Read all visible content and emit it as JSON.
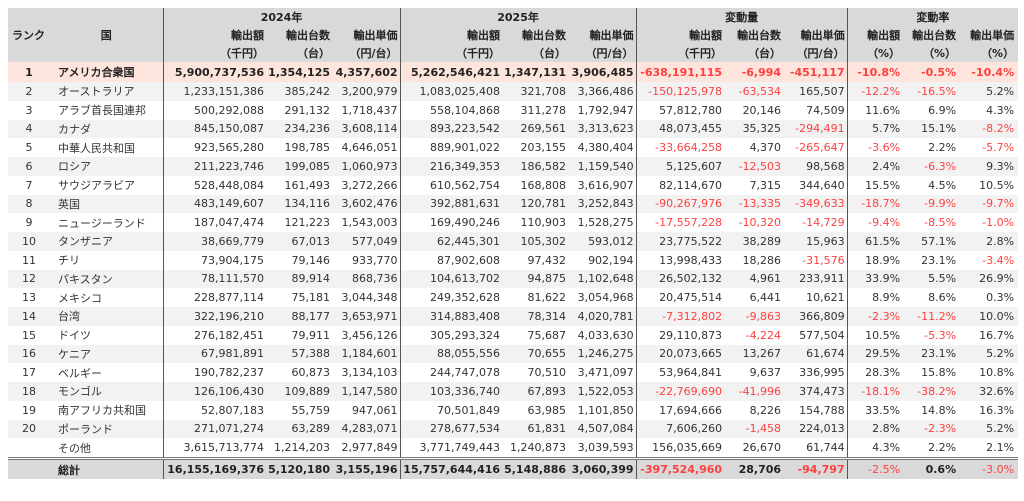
{
  "header": {
    "rank": "ランク",
    "country": "国",
    "groups": [
      "2024年",
      "2025年",
      "変動量",
      "変動率"
    ],
    "labels": [
      "輸出額",
      "輸出台数",
      "輸出単価",
      "輸出額",
      "輸出台数",
      "輸出単価",
      "輸出額",
      "輸出台数",
      "輸出単価",
      "輸出額",
      "輸出台数",
      "輸出単価"
    ],
    "units": [
      "（千円）",
      "（台）",
      "（円/台）",
      "（千円）",
      "（台）",
      "（円/台）",
      "（千円）",
      "（台）",
      "（円/台）",
      "（%）",
      "（%）",
      "（%）"
    ]
  },
  "colors": {
    "negative": "#ff4040",
    "highlight_row": "#fde4dc",
    "header_bg": "#d9d9d9"
  },
  "rows": [
    [
      "1",
      "アメリカ合衆国",
      "5,900,737,536",
      "1,354,125",
      "4,357,602",
      "5,262,546,421",
      "1,347,131",
      "3,906,485",
      "-638,191,115",
      "-6,994",
      "-451,117",
      "-10.8%",
      "-0.5%",
      "-10.4%"
    ],
    [
      "2",
      "オーストラリア",
      "1,233,151,386",
      "385,242",
      "3,200,979",
      "1,083,025,408",
      "321,708",
      "3,366,486",
      "-150,125,978",
      "-63,534",
      "165,507",
      "-12.2%",
      "-16.5%",
      "5.2%"
    ],
    [
      "3",
      "アラブ首長国連邦",
      "500,292,088",
      "291,132",
      "1,718,437",
      "558,104,868",
      "311,278",
      "1,792,947",
      "57,812,780",
      "20,146",
      "74,509",
      "11.6%",
      "6.9%",
      "4.3%"
    ],
    [
      "4",
      "カナダ",
      "845,150,087",
      "234,236",
      "3,608,114",
      "893,223,542",
      "269,561",
      "3,313,623",
      "48,073,455",
      "35,325",
      "-294,491",
      "5.7%",
      "15.1%",
      "-8.2%"
    ],
    [
      "5",
      "中華人民共和国",
      "923,565,280",
      "198,785",
      "4,646,051",
      "889,901,022",
      "203,155",
      "4,380,404",
      "-33,664,258",
      "4,370",
      "-265,647",
      "-3.6%",
      "2.2%",
      "-5.7%"
    ],
    [
      "6",
      "ロシア",
      "211,223,746",
      "199,085",
      "1,060,973",
      "216,349,353",
      "186,582",
      "1,159,540",
      "5,125,607",
      "-12,503",
      "98,568",
      "2.4%",
      "-6.3%",
      "9.3%"
    ],
    [
      "7",
      "サウジアラビア",
      "528,448,084",
      "161,493",
      "3,272,266",
      "610,562,754",
      "168,808",
      "3,616,907",
      "82,114,670",
      "7,315",
      "344,640",
      "15.5%",
      "4.5%",
      "10.5%"
    ],
    [
      "8",
      "英国",
      "483,149,607",
      "134,116",
      "3,602,476",
      "392,881,631",
      "120,781",
      "3,252,843",
      "-90,267,976",
      "-13,335",
      "-349,633",
      "-18.7%",
      "-9.9%",
      "-9.7%"
    ],
    [
      "9",
      "ニュージーランド",
      "187,047,474",
      "121,223",
      "1,543,003",
      "169,490,246",
      "110,903",
      "1,528,275",
      "-17,557,228",
      "-10,320",
      "-14,729",
      "-9.4%",
      "-8.5%",
      "-1.0%"
    ],
    [
      "10",
      "タンザニア",
      "38,669,779",
      "67,013",
      "577,049",
      "62,445,301",
      "105,302",
      "593,012",
      "23,775,522",
      "38,289",
      "15,963",
      "61.5%",
      "57.1%",
      "2.8%"
    ],
    [
      "11",
      "チリ",
      "73,904,175",
      "79,146",
      "933,770",
      "87,902,608",
      "97,432",
      "902,194",
      "13,998,433",
      "18,286",
      "-31,576",
      "18.9%",
      "23.1%",
      "-3.4%"
    ],
    [
      "12",
      "パキスタン",
      "78,111,570",
      "89,914",
      "868,736",
      "104,613,702",
      "94,875",
      "1,102,648",
      "26,502,132",
      "4,961",
      "233,911",
      "33.9%",
      "5.5%",
      "26.9%"
    ],
    [
      "13",
      "メキシコ",
      "228,877,114",
      "75,181",
      "3,044,348",
      "249,352,628",
      "81,622",
      "3,054,968",
      "20,475,514",
      "6,441",
      "10,621",
      "8.9%",
      "8.6%",
      "0.3%"
    ],
    [
      "14",
      "台湾",
      "322,196,210",
      "88,177",
      "3,653,971",
      "314,883,408",
      "78,314",
      "4,020,781",
      "-7,312,802",
      "-9,863",
      "366,809",
      "-2.3%",
      "-11.2%",
      "10.0%"
    ],
    [
      "15",
      "ドイツ",
      "276,182,451",
      "79,911",
      "3,456,126",
      "305,293,324",
      "75,687",
      "4,033,630",
      "29,110,873",
      "-4,224",
      "577,504",
      "10.5%",
      "-5.3%",
      "16.7%"
    ],
    [
      "16",
      "ケニア",
      "67,981,891",
      "57,388",
      "1,184,601",
      "88,055,556",
      "70,655",
      "1,246,275",
      "20,073,665",
      "13,267",
      "61,674",
      "29.5%",
      "23.1%",
      "5.2%"
    ],
    [
      "17",
      "ベルギー",
      "190,782,237",
      "60,873",
      "3,134,103",
      "244,747,078",
      "70,510",
      "3,471,097",
      "53,964,841",
      "9,637",
      "336,995",
      "28.3%",
      "15.8%",
      "10.8%"
    ],
    [
      "18",
      "モンゴル",
      "126,106,430",
      "109,889",
      "1,147,580",
      "103,336,740",
      "67,893",
      "1,522,053",
      "-22,769,690",
      "-41,996",
      "374,473",
      "-18.1%",
      "-38.2%",
      "32.6%"
    ],
    [
      "19",
      "南アフリカ共和国",
      "52,807,183",
      "55,759",
      "947,061",
      "70,501,849",
      "63,985",
      "1,101,850",
      "17,694,666",
      "8,226",
      "154,788",
      "33.5%",
      "14.8%",
      "16.3%"
    ],
    [
      "20",
      "ポーランド",
      "271,071,274",
      "63,289",
      "4,283,071",
      "278,677,534",
      "61,831",
      "4,507,084",
      "7,606,260",
      "-1,458",
      "224,013",
      "2.8%",
      "-2.3%",
      "5.2%"
    ],
    [
      "",
      "その他",
      "3,615,713,774",
      "1,214,203",
      "2,977,849",
      "3,771,749,443",
      "1,240,873",
      "3,039,593",
      "156,035,669",
      "26,670",
      "61,744",
      "4.3%",
      "2.2%",
      "2.1%"
    ]
  ],
  "total": [
    "",
    "総計",
    "16,155,169,376",
    "5,120,180",
    "3,155,196",
    "15,757,644,416",
    "5,148,886",
    "3,060,399",
    "-397,524,960",
    "28,706",
    "-94,797",
    "-2.5%",
    "0.6%",
    "-3.0%"
  ]
}
